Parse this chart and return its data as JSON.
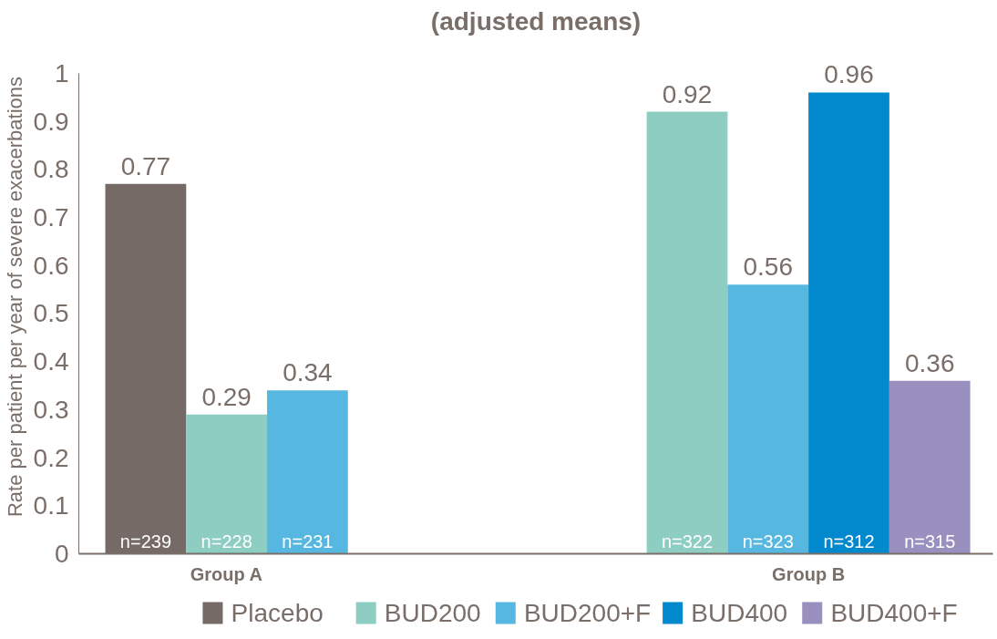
{
  "chart_data": {
    "type": "bar",
    "title": "(adjusted means)",
    "ylabel": "Rate per patient per year of severe exacerbations",
    "categories": [
      "Group A",
      "Group B"
    ],
    "series": [
      {
        "name": "Placebo",
        "color": "#756a65",
        "values": [
          0.77,
          null
        ]
      },
      {
        "name": "BUD200",
        "color": "#8dcdc2",
        "values": [
          0.29,
          0.92
        ]
      },
      {
        "name": "BUD200+F",
        "color": "#56b8e1",
        "values": [
          0.34,
          0.56
        ]
      },
      {
        "name": "BUD400",
        "color": "#0288cc",
        "values": [
          null,
          0.96
        ]
      },
      {
        "name": "BUD400+F",
        "color": "#9a90bf",
        "values": [
          null,
          0.36
        ]
      }
    ],
    "ylim": [
      0,
      1
    ],
    "yticks": [
      0,
      0.1,
      0.2,
      0.3,
      0.4,
      0.5,
      0.6,
      0.7,
      0.8,
      0.9,
      1
    ],
    "data_labels": true,
    "legend": "bottom",
    "grid": false,
    "annotations": [
      "n=239",
      "n=228",
      "n=231",
      "n=322",
      "n=323",
      "n=312",
      "n=315"
    ]
  }
}
